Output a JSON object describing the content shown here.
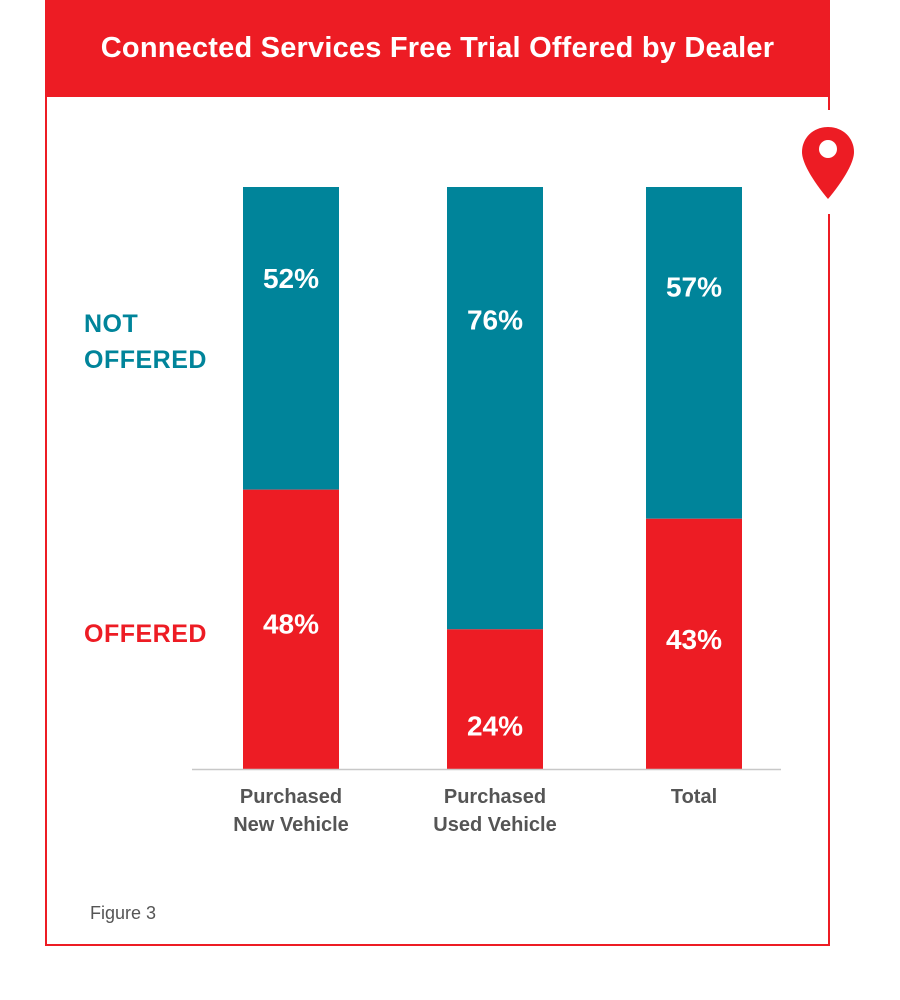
{
  "title": "Connected Services Free Trial Offered by Dealer",
  "figure_note": "Figure 3",
  "colors": {
    "accent": "#ed1c24",
    "not_offered": "#00849a",
    "offered": "#ed1c24"
  },
  "icons": {
    "location": "map-pin-icon"
  },
  "chart_data": {
    "type": "bar",
    "stacked": true,
    "categories": [
      [
        "Purchased",
        "New Vehicle"
      ],
      [
        "Purchased",
        "Used Vehicle"
      ],
      [
        "Total"
      ]
    ],
    "series": [
      {
        "name": "OFFERED",
        "values": [
          48,
          24,
          43
        ],
        "labels": [
          "48%",
          "24%",
          "43%"
        ]
      },
      {
        "name": "NOT OFFERED",
        "values": [
          52,
          76,
          57
        ],
        "labels": [
          "52%",
          "76%",
          "57%"
        ]
      }
    ],
    "legend": {
      "not_offered": "NOT\nOFFERED",
      "offered": "OFFERED"
    },
    "ylim": [
      0,
      100
    ],
    "unit": "%",
    "grid": false,
    "legend_position": "left"
  }
}
